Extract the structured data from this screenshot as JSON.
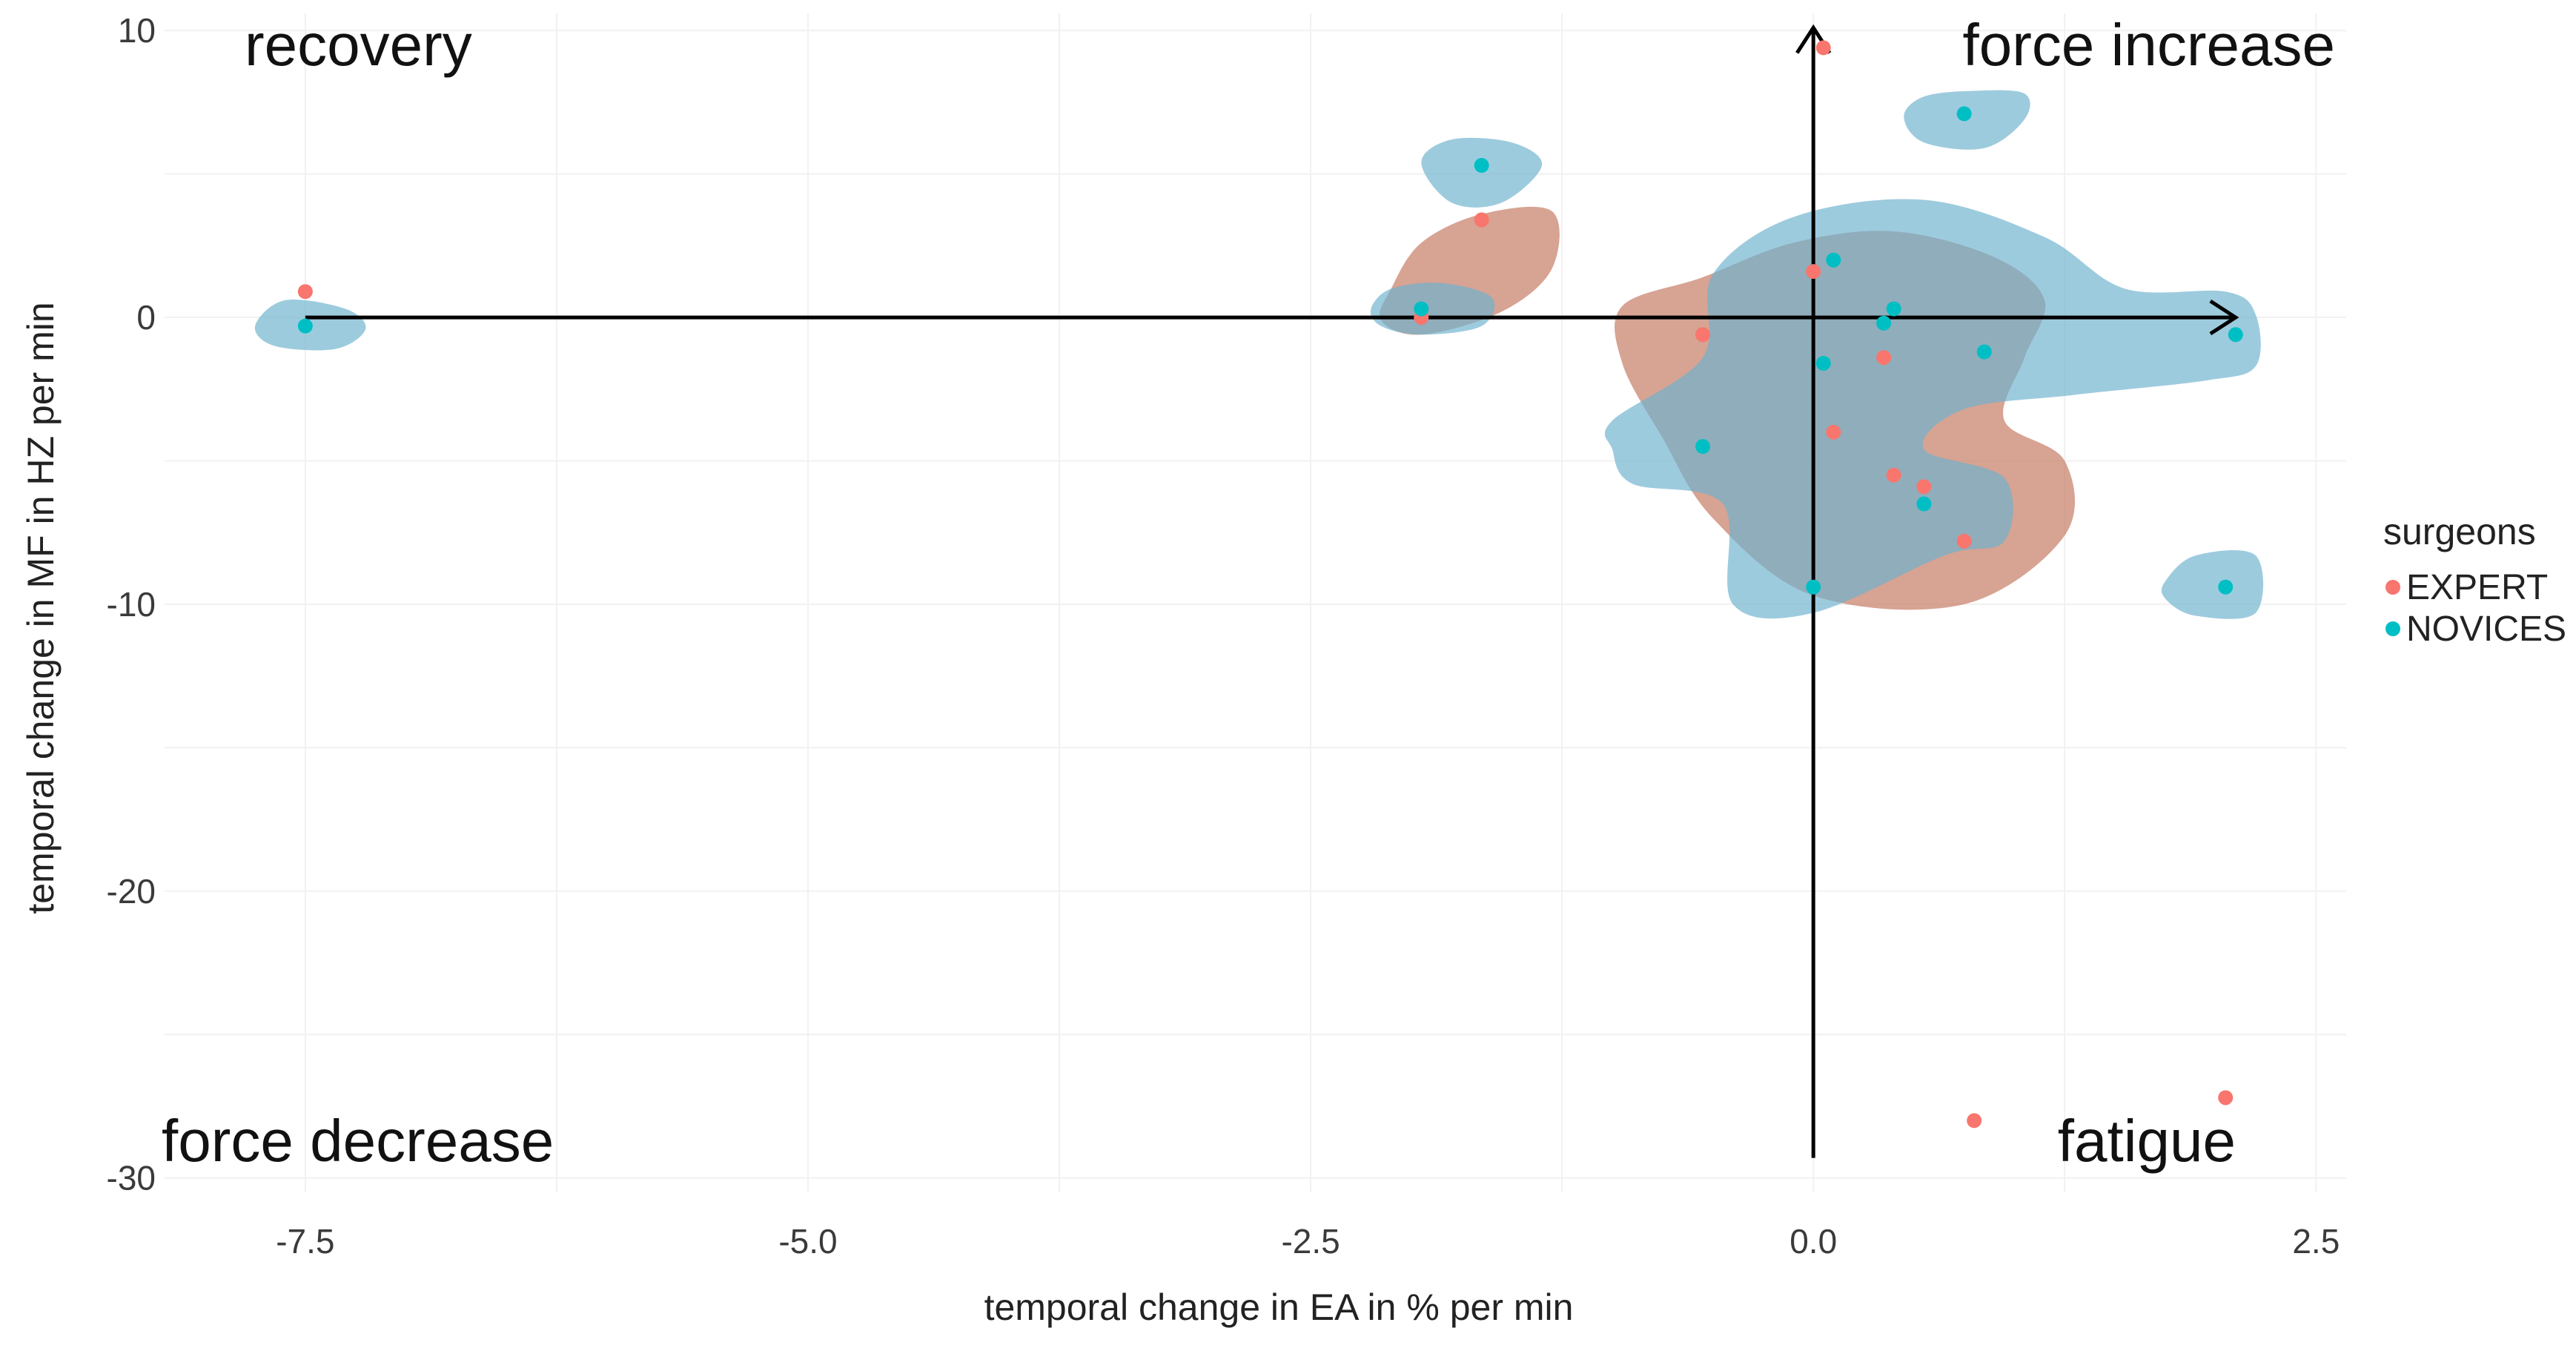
{
  "chart_data": {
    "type": "scatter",
    "xlabel": "temporal change in EA in % per min",
    "ylabel": "temporal change in MF in HZ per min",
    "xlim": [
      -8.2,
      2.65
    ],
    "ylim": [
      -30.5,
      10.6
    ],
    "x_ticks": [
      -7.5,
      -5.0,
      -2.5,
      0.0,
      2.5
    ],
    "x_tick_labels": [
      "-7.5",
      "-5.0",
      "-2.5",
      "0.0",
      "2.5"
    ],
    "y_ticks": [
      10,
      0,
      -10,
      -20,
      -30
    ],
    "y_tick_labels": [
      "10",
      "0",
      "-10",
      "-20",
      "-30"
    ],
    "grid": true,
    "legend": {
      "title": "surgeons",
      "position": "right",
      "entries": [
        "EXPERT",
        "NOVICES"
      ]
    },
    "quadrant_labels": {
      "top_left": "recovery",
      "top_right": "force increase",
      "bottom_left": "force decrease",
      "bottom_right": "fatigue"
    },
    "colors": {
      "EXPERT": "#f8766d",
      "NOVICES": "#00bfc4",
      "EXPERT_density": "#c8806a",
      "NOVICES_density": "#6fb3cf",
      "arrow": "#000000"
    },
    "series": [
      {
        "name": "EXPERT",
        "points": [
          {
            "x": -7.5,
            "y": 0.9
          },
          {
            "x": -1.65,
            "y": 3.4
          },
          {
            "x": -1.95,
            "y": 0.0
          },
          {
            "x": 0.05,
            "y": 9.4
          },
          {
            "x": 0.0,
            "y": 1.6
          },
          {
            "x": -0.55,
            "y": -0.6
          },
          {
            "x": 0.35,
            "y": -1.4
          },
          {
            "x": 0.1,
            "y": -4.0
          },
          {
            "x": 0.4,
            "y": -5.5
          },
          {
            "x": 0.55,
            "y": -5.9
          },
          {
            "x": 0.75,
            "y": -7.8
          },
          {
            "x": 0.8,
            "y": -28.0
          },
          {
            "x": 2.05,
            "y": -27.2
          }
        ]
      },
      {
        "name": "NOVICES",
        "points": [
          {
            "x": -7.5,
            "y": -0.3
          },
          {
            "x": -1.65,
            "y": 5.3
          },
          {
            "x": -1.95,
            "y": 0.3
          },
          {
            "x": 0.75,
            "y": 7.1
          },
          {
            "x": 0.1,
            "y": 2.0
          },
          {
            "x": 0.4,
            "y": 0.3
          },
          {
            "x": 0.35,
            "y": -0.2
          },
          {
            "x": 0.05,
            "y": -1.6
          },
          {
            "x": 0.85,
            "y": -1.2
          },
          {
            "x": 2.1,
            "y": -0.6
          },
          {
            "x": -0.55,
            "y": -4.5
          },
          {
            "x": 0.55,
            "y": -6.5
          },
          {
            "x": 0.0,
            "y": -9.4
          },
          {
            "x": 2.05,
            "y": -9.4
          }
        ]
      }
    ],
    "density_regions": [
      {
        "series": "EXPERT",
        "description": "main cluster",
        "outline": [
          [
            -0.95,
            0.4
          ],
          [
            -0.55,
            1.4
          ],
          [
            -0.1,
            2.6
          ],
          [
            0.4,
            3.0
          ],
          [
            0.9,
            2.1
          ],
          [
            1.15,
            0.6
          ],
          [
            1.05,
            -1.4
          ],
          [
            0.95,
            -3.6
          ],
          [
            1.25,
            -5.0
          ],
          [
            1.25,
            -7.6
          ],
          [
            0.75,
            -10.0
          ],
          [
            0.0,
            -9.7
          ],
          [
            -0.5,
            -7.0
          ],
          [
            -0.75,
            -4.2
          ],
          [
            -0.95,
            -1.6
          ]
        ]
      },
      {
        "series": "EXPERT",
        "description": "left cluster",
        "outline": [
          [
            -2.1,
            1.0
          ],
          [
            -1.95,
            2.6
          ],
          [
            -1.65,
            3.6
          ],
          [
            -1.3,
            3.7
          ],
          [
            -1.3,
            1.7
          ],
          [
            -1.55,
            0.2
          ],
          [
            -1.95,
            -0.6
          ],
          [
            -2.15,
            -0.1
          ]
        ]
      },
      {
        "series": "NOVICES",
        "description": "main cluster",
        "outline": [
          [
            -1.0,
            -3.6
          ],
          [
            -0.55,
            -1.4
          ],
          [
            -0.5,
            1.5
          ],
          [
            -0.1,
            3.5
          ],
          [
            0.55,
            4.1
          ],
          [
            1.15,
            2.8
          ],
          [
            1.55,
            1.0
          ],
          [
            2.05,
            0.9
          ],
          [
            2.2,
            0.1
          ],
          [
            2.2,
            -1.7
          ],
          [
            1.95,
            -2.2
          ],
          [
            1.3,
            -2.7
          ],
          [
            0.75,
            -3.2
          ],
          [
            0.55,
            -4.6
          ],
          [
            0.95,
            -5.6
          ],
          [
            0.95,
            -7.8
          ],
          [
            0.65,
            -8.3
          ],
          [
            0.0,
            -10.3
          ],
          [
            -0.4,
            -10.0
          ],
          [
            -0.45,
            -6.5
          ],
          [
            -0.9,
            -5.8
          ],
          [
            -1.0,
            -4.6
          ]
        ]
      },
      {
        "series": "NOVICES",
        "description": "top-right blob",
        "outline": [
          [
            0.45,
            7.0
          ],
          [
            0.55,
            7.7
          ],
          [
            0.8,
            7.9
          ],
          [
            1.05,
            7.8
          ],
          [
            1.05,
            6.9
          ],
          [
            0.85,
            5.9
          ],
          [
            0.55,
            6.1
          ]
        ]
      },
      {
        "series": "NOVICES",
        "description": "far-right blob",
        "outline": [
          [
            1.75,
            -9.2
          ],
          [
            1.9,
            -8.3
          ],
          [
            2.2,
            -8.3
          ],
          [
            2.2,
            -10.3
          ],
          [
            1.9,
            -10.4
          ],
          [
            1.75,
            -9.8
          ]
        ]
      },
      {
        "series": "NOVICES",
        "description": "top-left blob",
        "outline": [
          [
            -1.95,
            5.4
          ],
          [
            -1.8,
            6.2
          ],
          [
            -1.5,
            6.1
          ],
          [
            -1.35,
            5.3
          ],
          [
            -1.55,
            4.0
          ],
          [
            -1.8,
            4.0
          ]
        ]
      },
      {
        "series": "NOVICES",
        "description": "left blob",
        "outline": [
          [
            -2.2,
            0.3
          ],
          [
            -2.1,
            1.0
          ],
          [
            -1.85,
            1.2
          ],
          [
            -1.6,
            0.7
          ],
          [
            -1.65,
            -0.3
          ],
          [
            -1.95,
            -0.6
          ],
          [
            -2.15,
            -0.3
          ]
        ]
      },
      {
        "series": "NOVICES",
        "description": "far-left blob",
        "outline": [
          [
            -7.75,
            -0.3
          ],
          [
            -7.6,
            0.6
          ],
          [
            -7.3,
            0.3
          ],
          [
            -7.2,
            -0.4
          ],
          [
            -7.35,
            -1.1
          ],
          [
            -7.65,
            -1.0
          ]
        ]
      }
    ]
  }
}
